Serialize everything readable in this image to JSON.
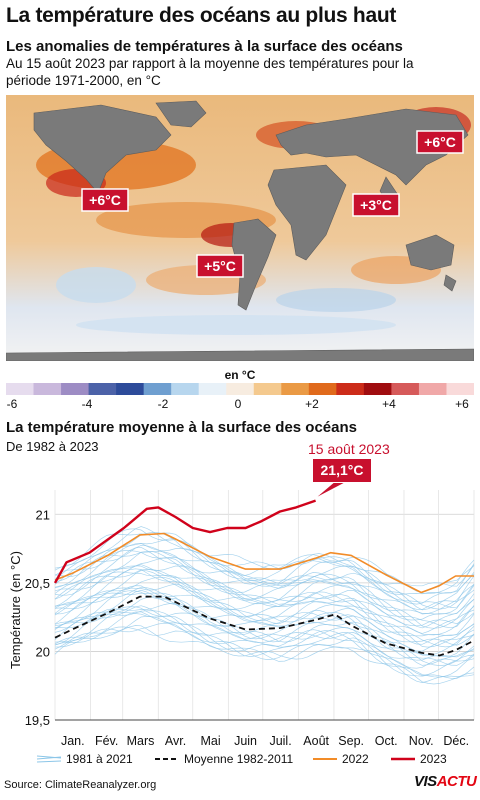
{
  "header": {
    "title": "La température des océans au plus haut",
    "subtitle": "Les anomalies de températures à la surface des océans",
    "description": "Au 15 août 2023 par rapport à la moyenne des températures pour la période 1971-2000, en °C"
  },
  "map": {
    "callouts": [
      {
        "label": "+6°C"
      },
      {
        "label": "+5°C"
      },
      {
        "label": "+3°C"
      },
      {
        "label": "+6°C"
      }
    ],
    "colors": {
      "land": "#7a7a7a",
      "ocean_base": "#e9b07a",
      "callout": "#c8102e"
    }
  },
  "color_scale": {
    "title": "en °C",
    "ticks": [
      "-6",
      "-4",
      "-2",
      "0",
      "+2",
      "+4",
      "+6"
    ],
    "colors": [
      "#e6dcee",
      "#c9b8dc",
      "#9d8cc4",
      "#4c62a8",
      "#2d4b9a",
      "#6f9fd0",
      "#b7d6ee",
      "#e8f1f8",
      "#f7ece0",
      "#f4c98e",
      "#ea9a45",
      "#e06a1c",
      "#cc2c1a",
      "#a00d10",
      "#d65a5a",
      "#f0a8a8",
      "#f9dada"
    ]
  },
  "chart_data": {
    "type": "line",
    "title": "La température moyenne à la surface des océans",
    "subtitle": "De 1982 à 2023",
    "ylabel": "Température (en °C)",
    "ylim": [
      19.5,
      21.25
    ],
    "yticks": [
      "19,5",
      "20",
      "20,5",
      "21"
    ],
    "xlim": [
      0,
      365
    ],
    "xticks": [
      "Jan.",
      "Fév.",
      "Mars",
      "Avr.",
      "Mai",
      "Juin",
      "Juil.",
      "Août",
      "Sep.",
      "Oct.",
      "Nov.",
      "Déc."
    ],
    "annotation": {
      "date": "15 août 2023",
      "value_label": "21,1°C",
      "value": 21.1
    },
    "series": [
      {
        "name": "1981 à 2021",
        "kind": "band",
        "color": "#8cc6e8",
        "x": [
          0,
          15,
          46,
          74,
          105,
          135,
          166,
          196,
          227,
          258,
          288,
          319,
          349,
          365
        ],
        "low": [
          19.98,
          20.03,
          20.12,
          20.17,
          20.12,
          20.02,
          19.96,
          19.95,
          20.02,
          20.03,
          19.88,
          19.78,
          19.8,
          19.85
        ],
        "high": [
          20.6,
          20.65,
          20.8,
          20.9,
          20.85,
          20.72,
          20.62,
          20.62,
          20.72,
          20.7,
          20.55,
          20.45,
          20.5,
          20.68
        ]
      },
      {
        "name": "Moyenne 1982-2011",
        "kind": "dashed",
        "color": "#111111",
        "x": [
          0,
          15,
          46,
          74,
          95,
          105,
          135,
          166,
          196,
          227,
          244,
          258,
          288,
          319,
          335,
          349,
          365
        ],
        "y": [
          20.1,
          20.16,
          20.28,
          20.4,
          20.4,
          20.36,
          20.24,
          20.16,
          20.17,
          20.23,
          20.27,
          20.19,
          20.06,
          19.99,
          19.97,
          20.01,
          20.08
        ]
      },
      {
        "name": "2022",
        "kind": "line",
        "color": "#f28c28",
        "x": [
          0,
          15,
          46,
          74,
          95,
          105,
          135,
          166,
          196,
          227,
          240,
          258,
          288,
          319,
          335,
          349,
          365
        ],
        "y": [
          20.52,
          20.57,
          20.7,
          20.85,
          20.86,
          20.82,
          20.69,
          20.6,
          20.6,
          20.68,
          20.72,
          20.7,
          20.56,
          20.43,
          20.48,
          20.55,
          20.55
        ]
      },
      {
        "name": "2023",
        "kind": "line",
        "color": "#d0021b",
        "x": [
          0,
          10,
          30,
          60,
          80,
          90,
          105,
          120,
          135,
          150,
          166,
          180,
          196,
          210,
          227
        ],
        "y": [
          20.5,
          20.65,
          20.72,
          20.9,
          21.04,
          21.05,
          20.98,
          20.9,
          20.87,
          20.9,
          20.9,
          20.95,
          21.02,
          21.05,
          21.1
        ]
      }
    ]
  },
  "legend": {
    "items": [
      "1981 à 2021",
      "Moyenne 1982-2011",
      "2022",
      "2023"
    ]
  },
  "footer": {
    "source": "Source: ClimateReanalyzer.org",
    "brand_a": "VIS",
    "brand_b": "ACTU"
  }
}
